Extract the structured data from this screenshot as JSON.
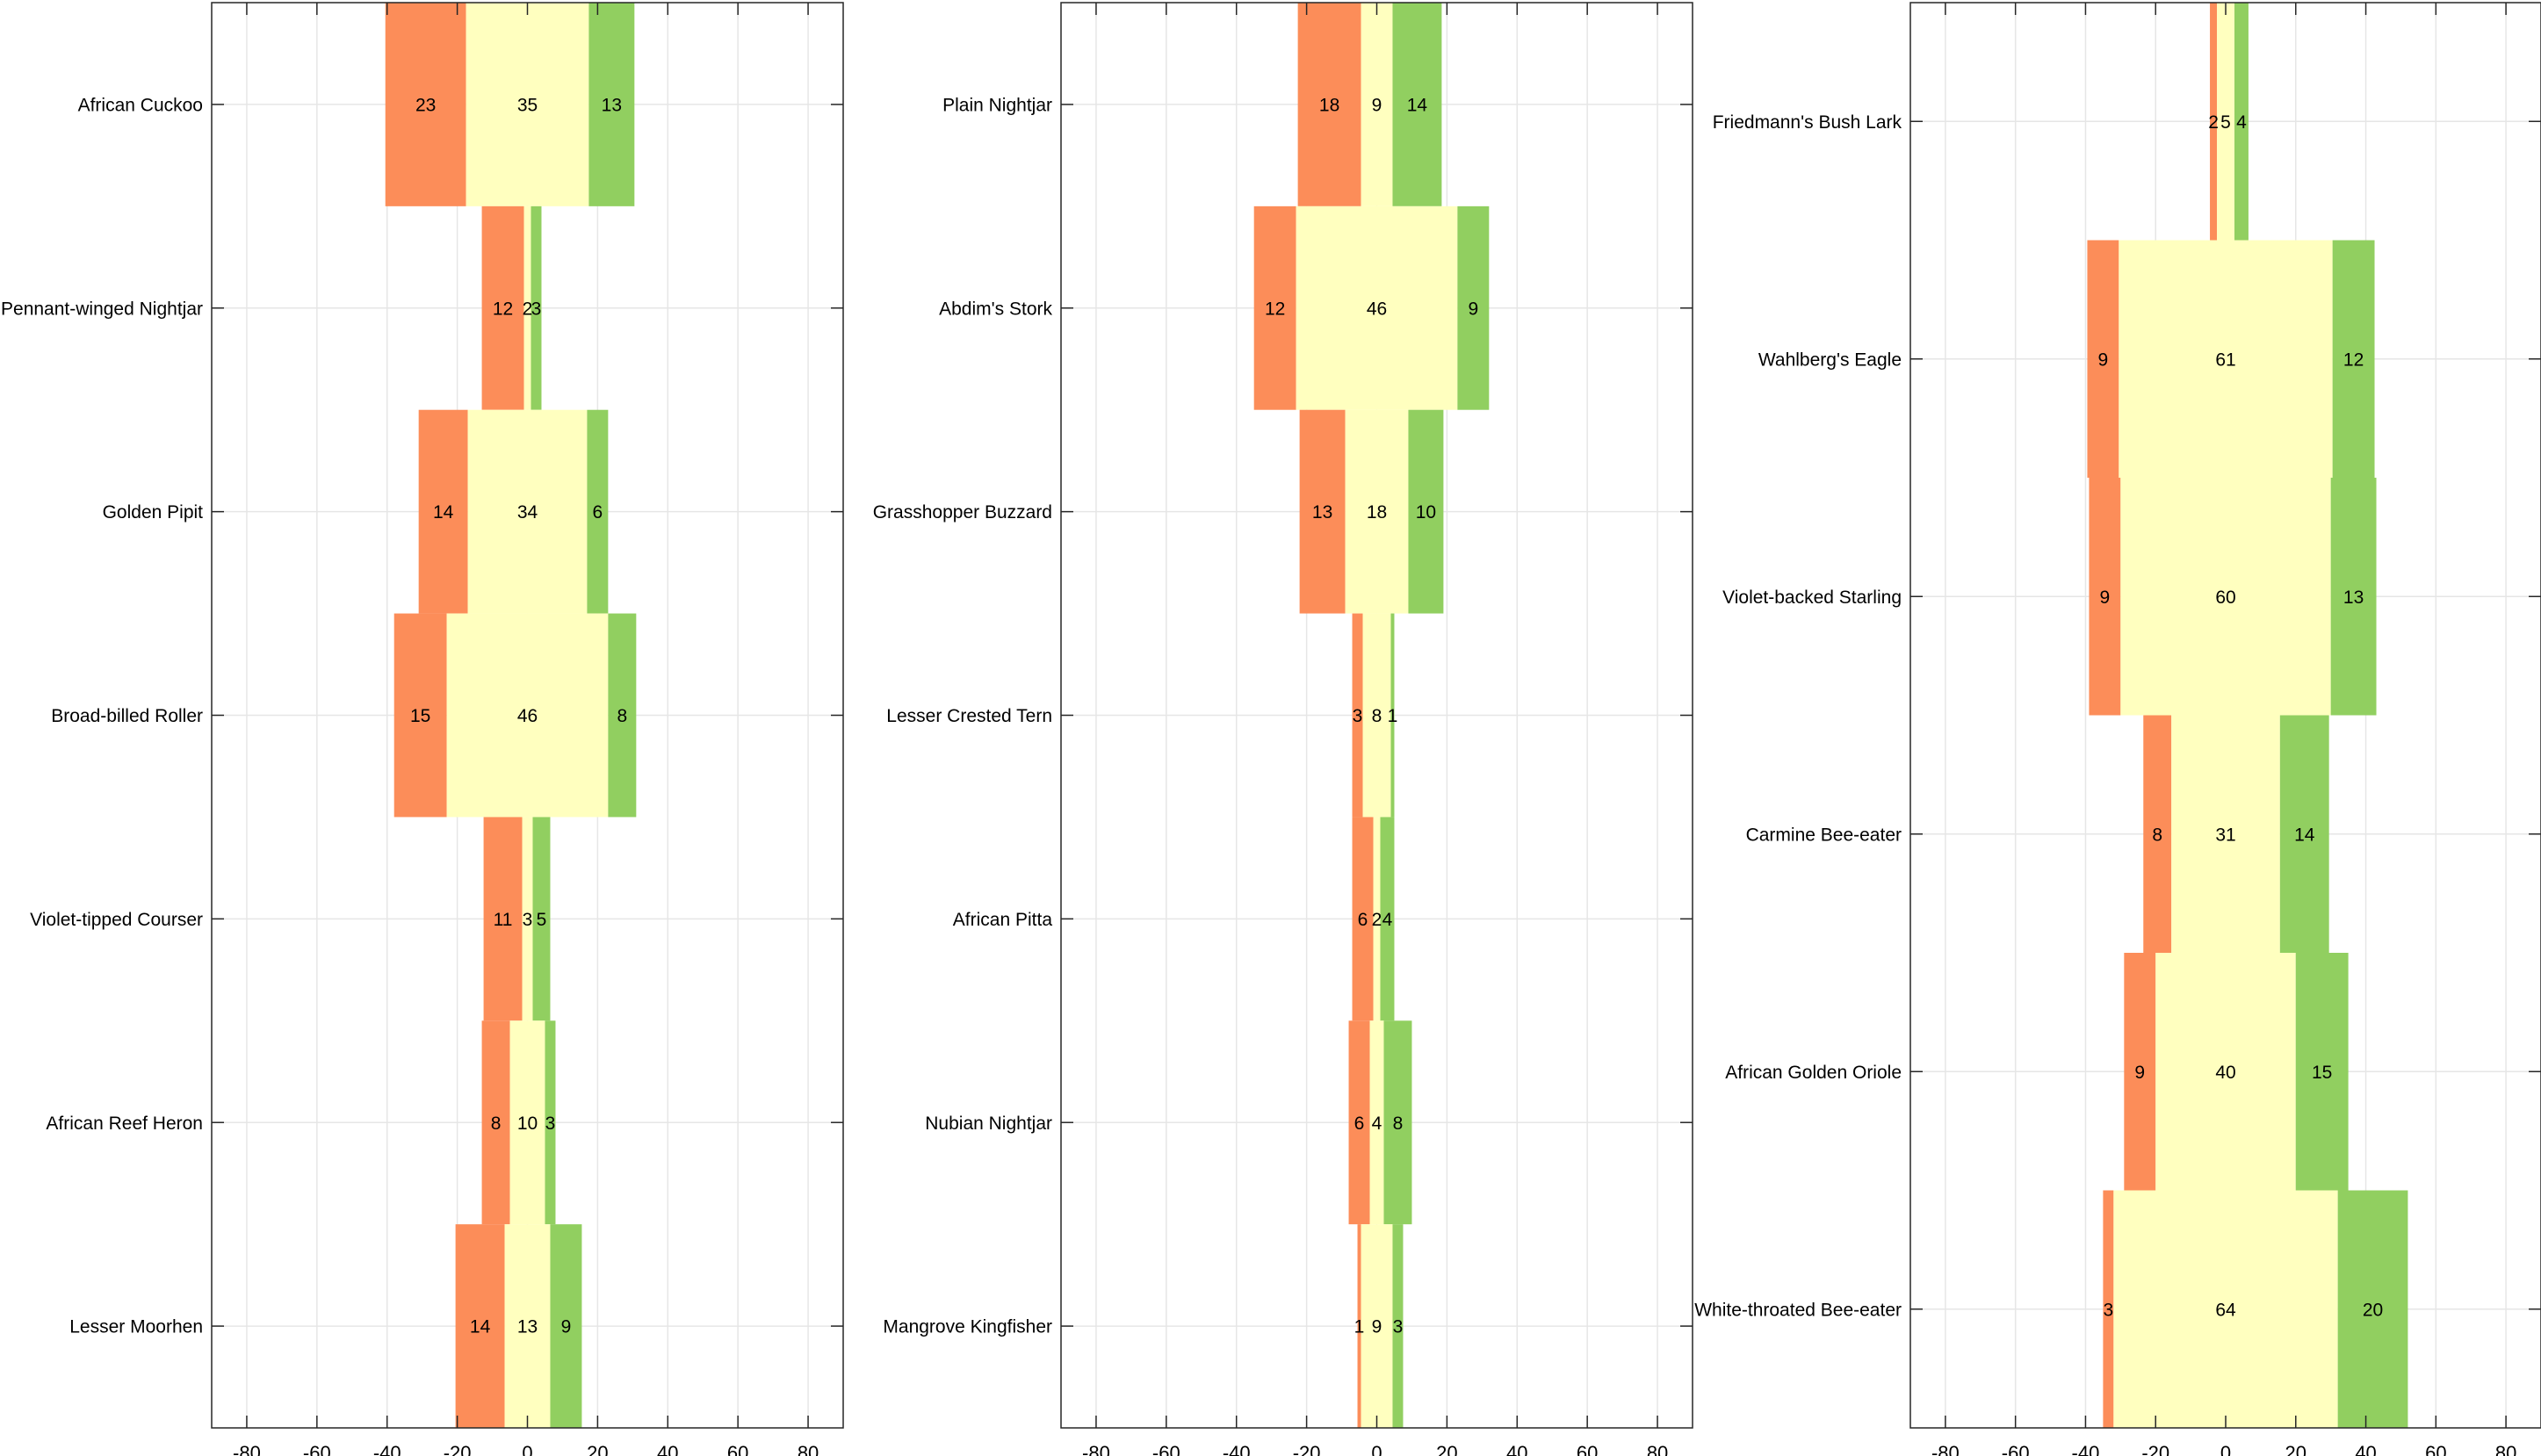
{
  "colors": {
    "negative": "#fc8d59",
    "neutral": "#ffffbf",
    "positive": "#91cf60",
    "grid": "#e6e6e6",
    "axis": "#262626",
    "text": "#000000"
  },
  "chart_data": [
    {
      "type": "bar",
      "orientation": "horizontal",
      "stacking": "diverging",
      "xlim": [
        -90,
        90
      ],
      "xticks": [
        -80,
        -60,
        -40,
        -20,
        0,
        20,
        40,
        60,
        80
      ],
      "grid": true,
      "categories": [
        "African Cuckoo",
        "Pennant-winged Nightjar",
        "Golden Pipit",
        "Broad-billed Roller",
        "Violet-tipped Courser",
        "African Reef Heron",
        "Lesser Moorhen"
      ],
      "series": [
        {
          "values": [
            23,
            12,
            14,
            15,
            11,
            8,
            14
          ]
        },
        {
          "values": [
            35,
            2,
            34,
            46,
            3,
            10,
            13
          ]
        },
        {
          "values": [
            13,
            3,
            6,
            8,
            5,
            3,
            9
          ]
        }
      ]
    },
    {
      "type": "bar",
      "orientation": "horizontal",
      "stacking": "diverging",
      "xlim": [
        -90,
        90
      ],
      "xticks": [
        -80,
        -60,
        -40,
        -20,
        0,
        20,
        40,
        60,
        80
      ],
      "grid": true,
      "categories": [
        "Plain Nightjar",
        "Abdim's Stork",
        "Grasshopper Buzzard",
        "Lesser Crested Tern",
        "African Pitta",
        "Nubian Nightjar",
        "Mangrove Kingfisher"
      ],
      "series": [
        {
          "values": [
            18,
            12,
            13,
            3,
            6,
            6,
            1
          ]
        },
        {
          "values": [
            9,
            46,
            18,
            8,
            2,
            4,
            9
          ]
        },
        {
          "values": [
            14,
            9,
            10,
            1,
            4,
            8,
            3
          ]
        }
      ]
    },
    {
      "type": "bar",
      "orientation": "horizontal",
      "stacking": "diverging",
      "xlim": [
        -90,
        90
      ],
      "xticks": [
        -80,
        -60,
        -40,
        -20,
        0,
        20,
        40,
        60,
        80
      ],
      "grid": true,
      "categories": [
        "Friedmann's Bush Lark",
        "Wahlberg's Eagle",
        "Violet-backed Starling",
        "Carmine Bee-eater",
        "African Golden Oriole",
        "White-throated Bee-eater"
      ],
      "series": [
        {
          "values": [
            2,
            9,
            9,
            8,
            9,
            3
          ]
        },
        {
          "values": [
            5,
            61,
            60,
            31,
            40,
            64
          ]
        },
        {
          "values": [
            4,
            12,
            13,
            14,
            15,
            20
          ]
        }
      ]
    }
  ]
}
